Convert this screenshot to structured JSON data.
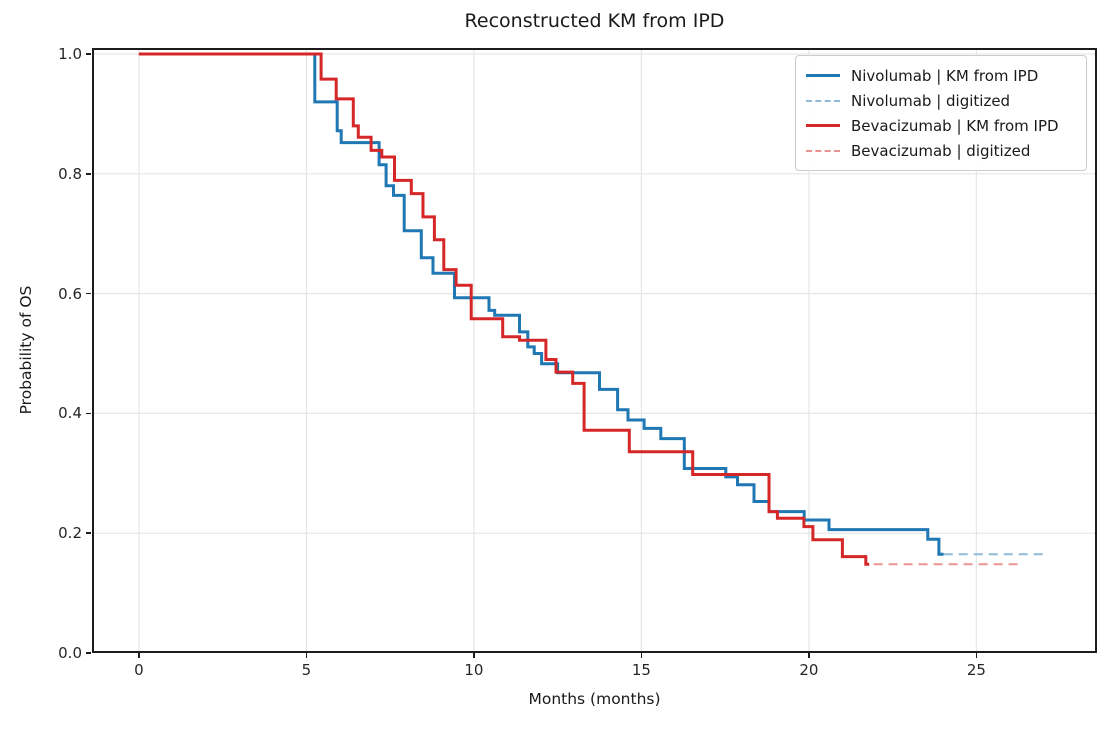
{
  "title": "Reconstructed KM from IPD",
  "axes": {
    "xlabel": "Months (months)",
    "ylabel": "Probability of OS",
    "xlim": [
      -1.4,
      28.6
    ],
    "ylim": [
      0,
      1.01
    ],
    "grid": true,
    "x_ticks": [
      {
        "value": 0,
        "label": "0"
      },
      {
        "value": 5,
        "label": "5"
      },
      {
        "value": 10,
        "label": "10"
      },
      {
        "value": 15,
        "label": "15"
      },
      {
        "value": 20,
        "label": "20"
      },
      {
        "value": 25,
        "label": "25"
      }
    ],
    "y_ticks": [
      {
        "value": 0.0,
        "label": "0.0"
      },
      {
        "value": 0.2,
        "label": "0.2"
      },
      {
        "value": 0.4,
        "label": "0.4"
      },
      {
        "value": 0.6,
        "label": "0.6"
      },
      {
        "value": 0.8,
        "label": "0.8"
      },
      {
        "value": 1.0,
        "label": "1.0"
      }
    ]
  },
  "colors": {
    "nivolumab": "#1f77b4",
    "nivolumab_digitized": "#8fbbd9",
    "bevacizumab": "#d62728",
    "bevacizumab_digitized": "#ea9393",
    "grid": "#e6e6e6",
    "spine": "#1c1c1c"
  },
  "legend": {
    "position": "upper right",
    "items": [
      {
        "label": "Nivolumab | KM from IPD",
        "color": "#1f77b4",
        "style": "solid"
      },
      {
        "label": "Nivolumab | digitized",
        "color": "#8fbbd9",
        "style": "dashed"
      },
      {
        "label": "Bevacizumab | KM from IPD",
        "color": "#d62728",
        "style": "solid"
      },
      {
        "label": "Bevacizumab | digitized",
        "color": "#ea9393",
        "style": "dashed"
      }
    ]
  },
  "chart_data": {
    "type": "line",
    "subtype": "kaplan-meier-step",
    "title": "Reconstructed KM from IPD",
    "xlabel": "Months (months)",
    "ylabel": "Probability of OS",
    "xlim": [
      -1.4,
      28.6
    ],
    "ylim": [
      0,
      1.01
    ],
    "legend_position": "upper right",
    "grid": true,
    "series": [
      {
        "name": "Nivolumab | KM from IPD",
        "color": "#1f77b4",
        "style": "solid",
        "width": 3,
        "points": [
          [
            0,
            1.0
          ],
          [
            5.25,
            0.92
          ],
          [
            5.92,
            0.872
          ],
          [
            6.04,
            0.852
          ],
          [
            7.17,
            0.815
          ],
          [
            7.38,
            0.78
          ],
          [
            7.6,
            0.764
          ],
          [
            7.92,
            0.705
          ],
          [
            8.43,
            0.66
          ],
          [
            8.78,
            0.634
          ],
          [
            9.42,
            0.593
          ],
          [
            10.45,
            0.572
          ],
          [
            10.62,
            0.564
          ],
          [
            11.36,
            0.536
          ],
          [
            11.61,
            0.511
          ],
          [
            11.8,
            0.5
          ],
          [
            12.02,
            0.483
          ],
          [
            12.5,
            0.468
          ],
          [
            13.75,
            0.44
          ],
          [
            14.29,
            0.406
          ],
          [
            14.6,
            0.389
          ],
          [
            15.08,
            0.375
          ],
          [
            15.58,
            0.358
          ],
          [
            16.28,
            0.308
          ],
          [
            17.52,
            0.294
          ],
          [
            17.87,
            0.281
          ],
          [
            18.36,
            0.253
          ],
          [
            18.81,
            0.236
          ],
          [
            19.86,
            0.222
          ],
          [
            20.6,
            0.206
          ],
          [
            23.55,
            0.19
          ],
          [
            23.88,
            0.165
          ],
          [
            24.02,
            0.165
          ]
        ]
      },
      {
        "name": "Nivolumab | digitized",
        "color": "#8fbbd9",
        "style": "dashed",
        "width": 2,
        "points": [
          [
            0,
            1.0
          ],
          [
            5.25,
            0.92
          ],
          [
            5.92,
            0.872
          ],
          [
            6.04,
            0.852
          ],
          [
            7.17,
            0.815
          ],
          [
            7.38,
            0.78
          ],
          [
            7.6,
            0.764
          ],
          [
            7.92,
            0.705
          ],
          [
            8.43,
            0.66
          ],
          [
            8.78,
            0.634
          ],
          [
            9.42,
            0.593
          ],
          [
            10.45,
            0.572
          ],
          [
            10.62,
            0.564
          ],
          [
            11.36,
            0.536
          ],
          [
            11.61,
            0.511
          ],
          [
            11.8,
            0.5
          ],
          [
            12.02,
            0.483
          ],
          [
            12.5,
            0.468
          ],
          [
            13.75,
            0.44
          ],
          [
            14.29,
            0.406
          ],
          [
            14.6,
            0.389
          ],
          [
            15.08,
            0.375
          ],
          [
            15.58,
            0.358
          ],
          [
            16.28,
            0.308
          ],
          [
            17.52,
            0.294
          ],
          [
            17.87,
            0.281
          ],
          [
            18.36,
            0.253
          ],
          [
            18.81,
            0.236
          ],
          [
            19.86,
            0.222
          ],
          [
            20.6,
            0.206
          ],
          [
            23.55,
            0.19
          ],
          [
            23.88,
            0.165
          ],
          [
            27.15,
            0.165
          ]
        ]
      },
      {
        "name": "Bevacizumab | KM from IPD",
        "color": "#d62728",
        "style": "solid",
        "width": 3,
        "points": [
          [
            0,
            1.0
          ],
          [
            5.44,
            0.958
          ],
          [
            5.89,
            0.925
          ],
          [
            6.4,
            0.88
          ],
          [
            6.55,
            0.861
          ],
          [
            6.93,
            0.839
          ],
          [
            7.25,
            0.828
          ],
          [
            7.63,
            0.789
          ],
          [
            8.13,
            0.767
          ],
          [
            8.48,
            0.728
          ],
          [
            8.82,
            0.69
          ],
          [
            9.1,
            0.64
          ],
          [
            9.47,
            0.614
          ],
          [
            9.92,
            0.558
          ],
          [
            10.86,
            0.528
          ],
          [
            11.36,
            0.522
          ],
          [
            12.15,
            0.49
          ],
          [
            12.45,
            0.469
          ],
          [
            12.95,
            0.45
          ],
          [
            13.29,
            0.372
          ],
          [
            14.64,
            0.336
          ],
          [
            16.53,
            0.298
          ],
          [
            18.81,
            0.236
          ],
          [
            19.06,
            0.225
          ],
          [
            19.85,
            0.211
          ],
          [
            20.12,
            0.189
          ],
          [
            21.0,
            0.161
          ],
          [
            21.7,
            0.148
          ],
          [
            21.8,
            0.148
          ]
        ]
      },
      {
        "name": "Bevacizumab | digitized",
        "color": "#ea9393",
        "style": "dashed",
        "width": 2,
        "points": [
          [
            0,
            1.0
          ],
          [
            5.44,
            0.958
          ],
          [
            5.89,
            0.925
          ],
          [
            6.4,
            0.88
          ],
          [
            6.55,
            0.861
          ],
          [
            6.93,
            0.839
          ],
          [
            7.25,
            0.828
          ],
          [
            7.63,
            0.789
          ],
          [
            8.13,
            0.767
          ],
          [
            8.48,
            0.728
          ],
          [
            8.82,
            0.69
          ],
          [
            9.1,
            0.64
          ],
          [
            9.47,
            0.614
          ],
          [
            9.92,
            0.558
          ],
          [
            10.86,
            0.528
          ],
          [
            11.36,
            0.522
          ],
          [
            12.15,
            0.49
          ],
          [
            12.45,
            0.469
          ],
          [
            12.95,
            0.45
          ],
          [
            13.29,
            0.372
          ],
          [
            14.64,
            0.336
          ],
          [
            16.53,
            0.298
          ],
          [
            18.81,
            0.236
          ],
          [
            19.06,
            0.225
          ],
          [
            19.85,
            0.211
          ],
          [
            20.12,
            0.189
          ],
          [
            21.0,
            0.161
          ],
          [
            21.7,
            0.148
          ],
          [
            26.25,
            0.148
          ]
        ]
      }
    ]
  }
}
